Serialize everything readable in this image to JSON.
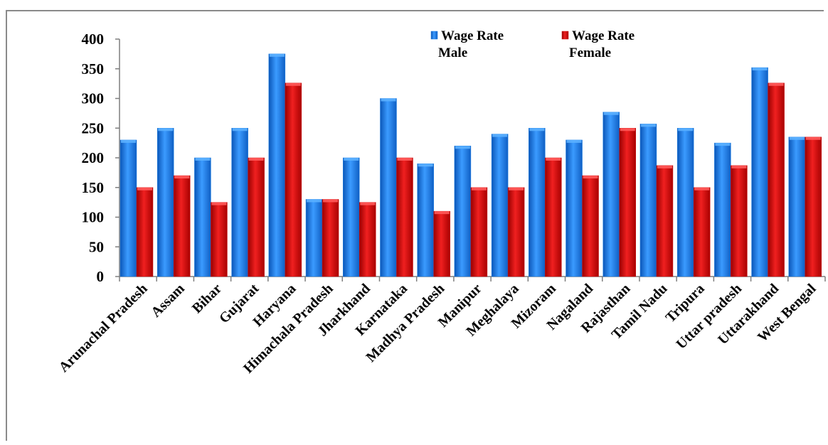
{
  "chart_data": {
    "type": "bar",
    "title": "",
    "xlabel": "",
    "ylabel": "",
    "ylim": [
      0,
      400
    ],
    "yticks": [
      0,
      50,
      100,
      150,
      200,
      250,
      300,
      350,
      400
    ],
    "grid": false,
    "legend_position": "top-center",
    "categories": [
      "Arunachal Pradesh",
      "Assam",
      "Bihar",
      "Gujarat",
      "Haryana",
      "Himachala Pradesh",
      "Jharkhand",
      "Karnataka",
      "Madhya Pradesh",
      "Manipur",
      "Meghalaya",
      "Mizoram",
      "Nagaland",
      "Rajasthan",
      "Tamil Nadu",
      "Tripura",
      "Uttar pradesh",
      "Uttarakhand",
      "West Bengal"
    ],
    "series": [
      {
        "name": "Wage Rate Male",
        "legend_lines": [
          "Wage Rate",
          "Male"
        ],
        "color": "#1a7fe6",
        "values": [
          230,
          250,
          200,
          250,
          375,
          130,
          200,
          300,
          190,
          220,
          240,
          250,
          230,
          277,
          257,
          250,
          225,
          352,
          235
        ]
      },
      {
        "name": "Wage Rate Female",
        "legend_lines": [
          "Wage Rate",
          "Female"
        ],
        "color": "#d01010",
        "values": [
          150,
          170,
          125,
          200,
          326,
          130,
          125,
          200,
          110,
          150,
          150,
          200,
          170,
          250,
          187,
          150,
          187,
          326,
          235
        ]
      }
    ]
  }
}
